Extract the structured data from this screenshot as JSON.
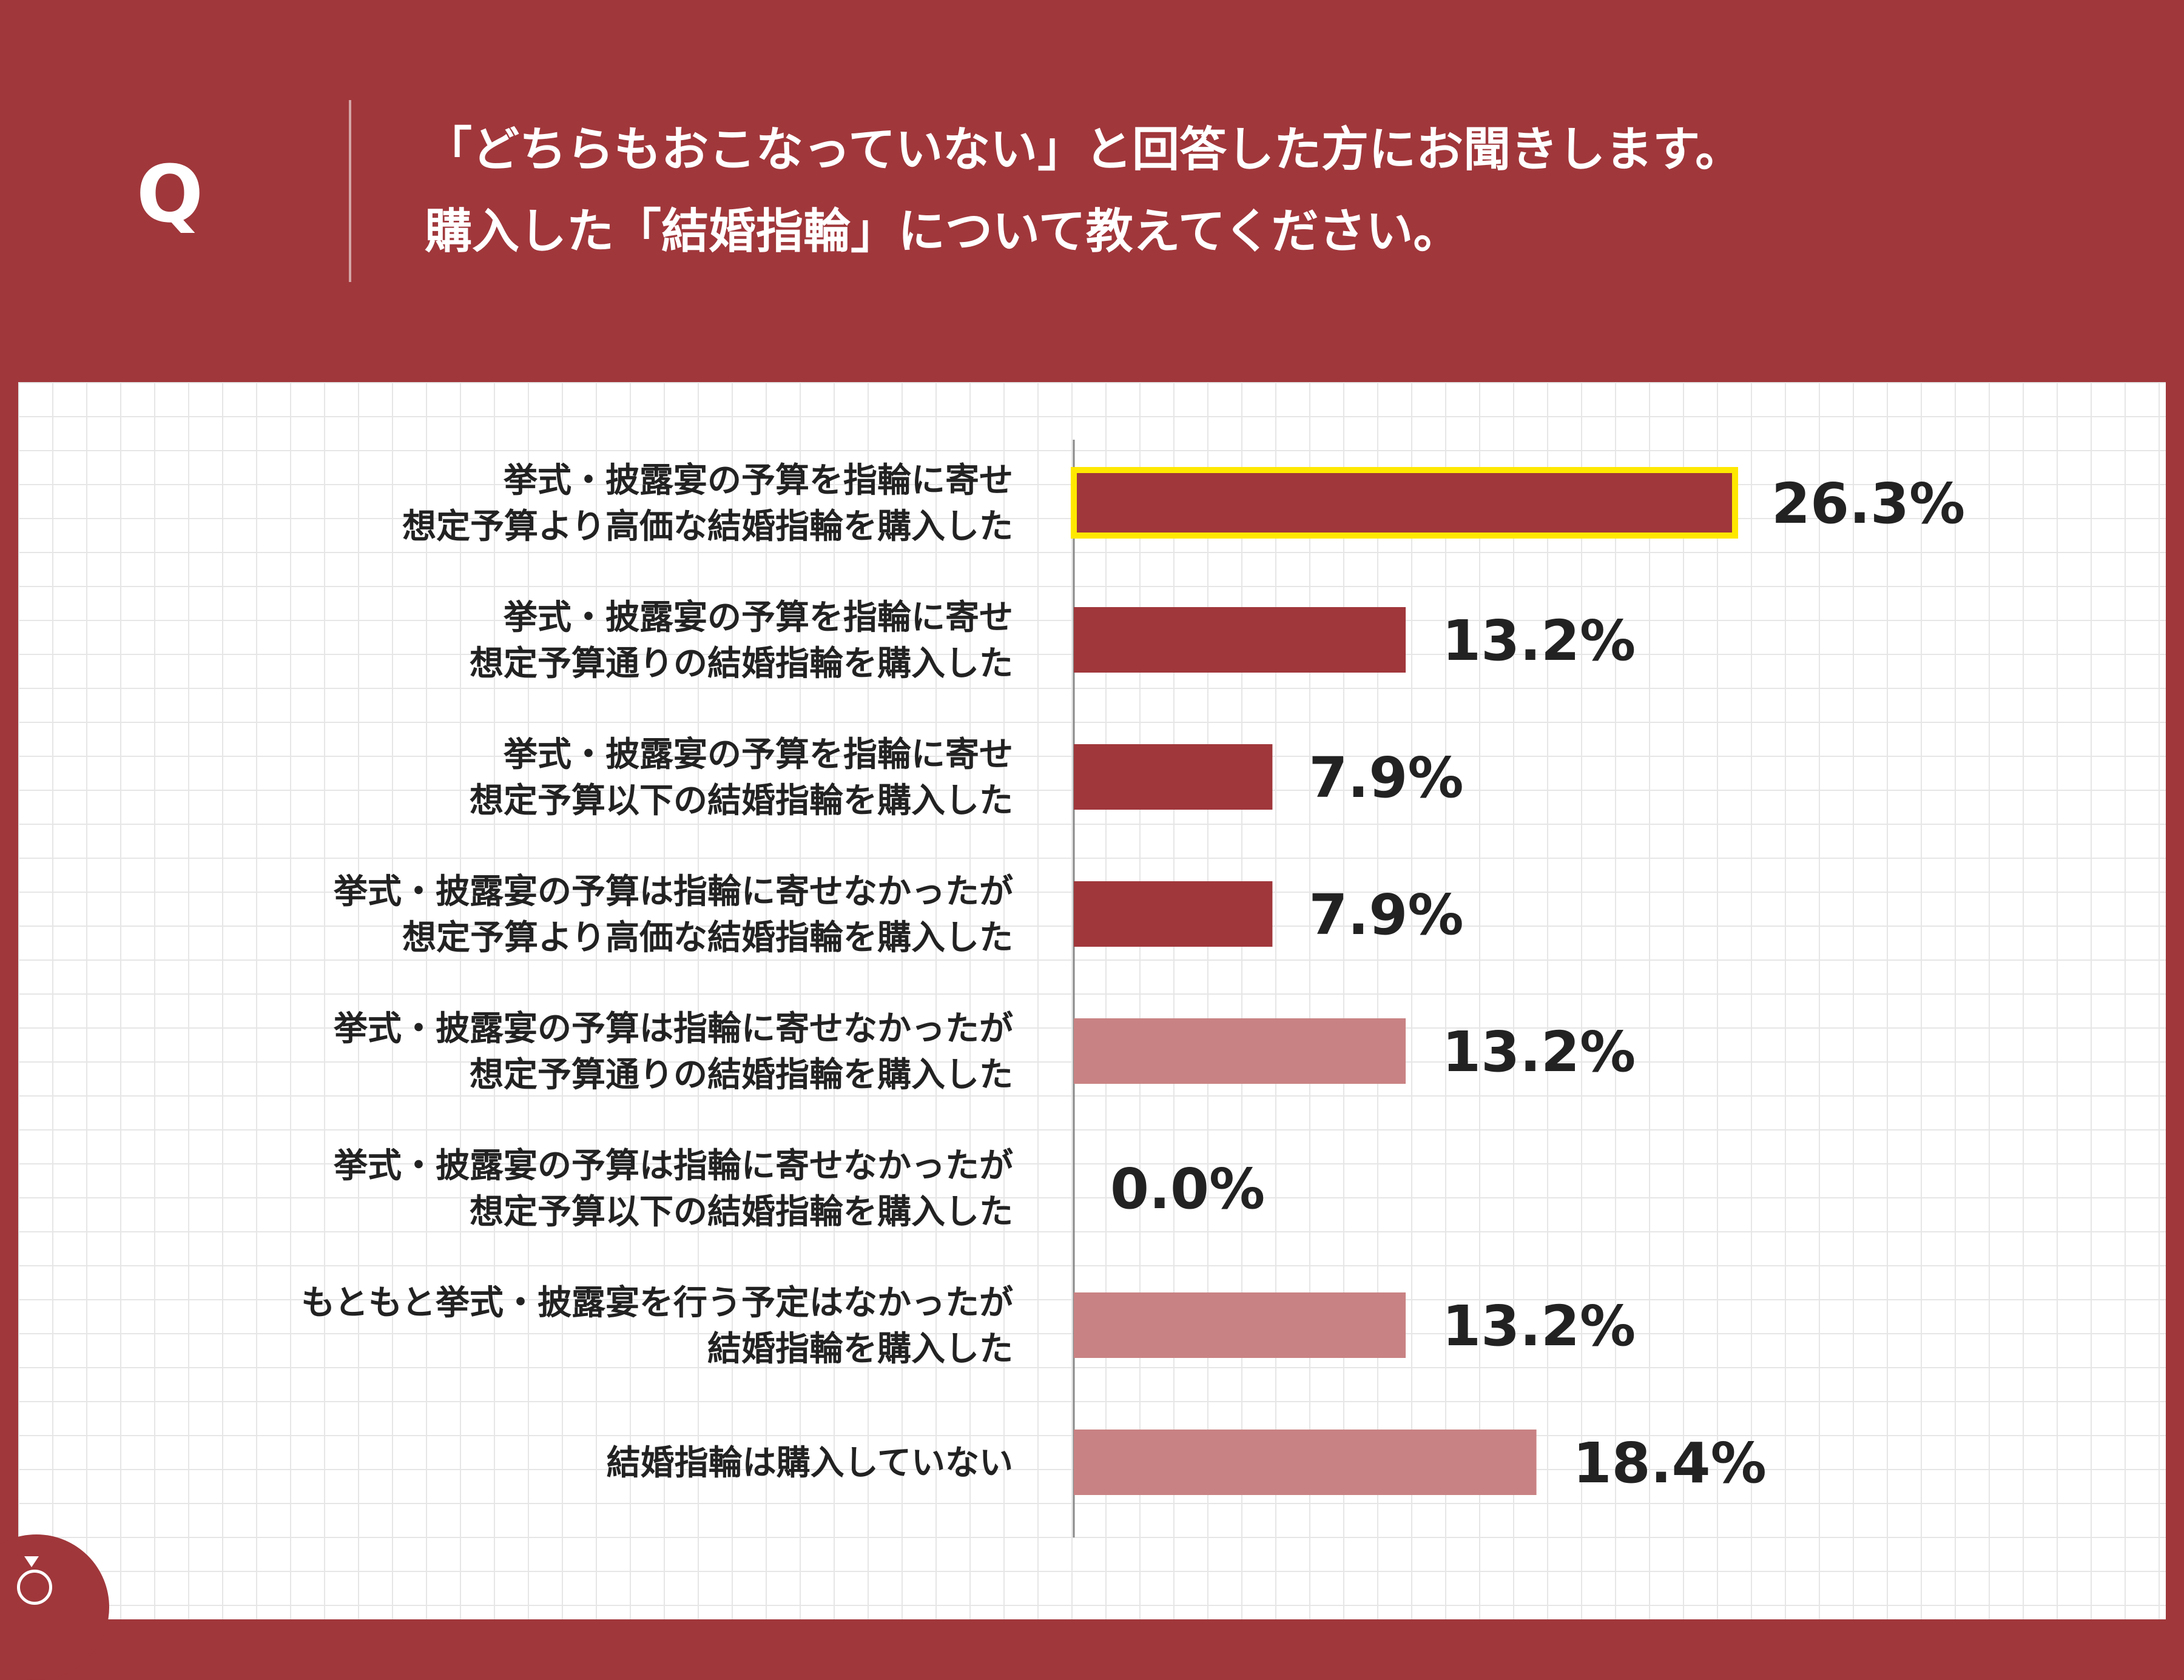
{
  "header": {
    "q_mark": "Q",
    "question_lines": [
      "「どちらもおこなっていない」と回答した方にお聞きします。",
      "購入した「結婚指輪」について教えてください。"
    ]
  },
  "colors": {
    "background": "#a0373b",
    "bar_dark": "#a0373b",
    "bar_light": "#c98283",
    "highlight_border": "#ffe800",
    "axis": "#888888",
    "text": "#222222"
  },
  "chart_data": {
    "type": "bar",
    "orientation": "horizontal",
    "title": "",
    "xlabel": "",
    "ylabel": "",
    "grid": true,
    "legend": "none",
    "xlim": [
      0,
      26.3
    ],
    "highlight_index": 0,
    "categories": [
      [
        "挙式・披露宴の予算を指輪に寄せ",
        "想定予算より高価な結婚指輪を購入した"
      ],
      [
        "挙式・披露宴の予算を指輪に寄せ",
        "想定予算通りの結婚指輪を購入した"
      ],
      [
        "挙式・披露宴の予算を指輪に寄せ",
        "想定予算以下の結婚指輪を購入した"
      ],
      [
        "挙式・披露宴の予算は指輪に寄せなかったが",
        "想定予算より高価な結婚指輪を購入した"
      ],
      [
        "挙式・披露宴の予算は指輪に寄せなかったが",
        "想定予算通りの結婚指輪を購入した"
      ],
      [
        "挙式・披露宴の予算は指輪に寄せなかったが",
        "想定予算以下の結婚指輪を購入した"
      ],
      [
        "もともと挙式・披露宴を行う予定はなかったが",
        "結婚指輪を購入した"
      ],
      [
        "結婚指輪は購入していない"
      ]
    ],
    "values": [
      26.3,
      13.2,
      7.9,
      7.9,
      13.2,
      0.0,
      13.2,
      18.4
    ],
    "value_labels": [
      "26.3%",
      "13.2%",
      "7.9%",
      "7.9%",
      "13.2%",
      "0.0%",
      "13.2%",
      "18.4%"
    ],
    "bar_colors": [
      "#a0373b",
      "#a0373b",
      "#a0373b",
      "#a0373b",
      "#c98283",
      "#c98283",
      "#c98283",
      "#c98283"
    ]
  }
}
